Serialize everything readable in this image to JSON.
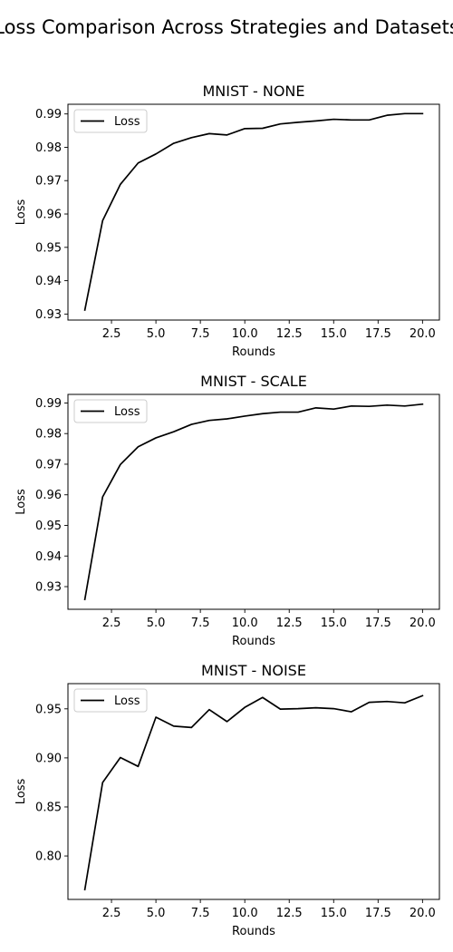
{
  "figure": {
    "suptitle": "Loss Comparison Across Strategies and Datasets"
  },
  "chart_data": [
    {
      "type": "line",
      "title": "MNIST - NONE",
      "xlabel": "Rounds",
      "ylabel": "Loss",
      "xlim": [
        0.05,
        20.95
      ],
      "ylim": [
        0.9282,
        0.9929
      ],
      "xticks": [
        2.5,
        5.0,
        7.5,
        10.0,
        12.5,
        15.0,
        17.5,
        20.0
      ],
      "xtick_labels": [
        "2.5",
        "5.0",
        "7.5",
        "10.0",
        "12.5",
        "15.0",
        "17.5",
        "20.0"
      ],
      "yticks": [
        0.93,
        0.94,
        0.95,
        0.96,
        0.97,
        0.98,
        0.99
      ],
      "ytick_labels": [
        "0.93",
        "0.94",
        "0.95",
        "0.96",
        "0.97",
        "0.98",
        "0.99"
      ],
      "legend_position": "upper-left",
      "series": [
        {
          "name": "Loss",
          "color": "#000000",
          "x": [
            1,
            2,
            3,
            4,
            5,
            6,
            7,
            8,
            9,
            10,
            11,
            12,
            13,
            14,
            15,
            16,
            17,
            18,
            19,
            20
          ],
          "y": [
            0.9312,
            0.958,
            0.9689,
            0.9753,
            0.978,
            0.9812,
            0.9829,
            0.9841,
            0.9837,
            0.9856,
            0.9857,
            0.987,
            0.9875,
            0.9879,
            0.9884,
            0.9882,
            0.9882,
            0.9896,
            0.9901,
            0.9901
          ]
        }
      ]
    },
    {
      "type": "line",
      "title": "MNIST - SCALE",
      "xlabel": "Rounds",
      "ylabel": "Loss",
      "xlim": [
        0.05,
        20.95
      ],
      "ylim": [
        0.9226,
        0.9928
      ],
      "xticks": [
        2.5,
        5.0,
        7.5,
        10.0,
        12.5,
        15.0,
        17.5,
        20.0
      ],
      "xtick_labels": [
        "2.5",
        "5.0",
        "7.5",
        "10.0",
        "12.5",
        "15.0",
        "17.5",
        "20.0"
      ],
      "yticks": [
        0.93,
        0.94,
        0.95,
        0.96,
        0.97,
        0.98,
        0.99
      ],
      "ytick_labels": [
        "0.93",
        "0.94",
        "0.95",
        "0.96",
        "0.97",
        "0.98",
        "0.99"
      ],
      "legend_position": "upper-left",
      "series": [
        {
          "name": "Loss",
          "color": "#000000",
          "x": [
            1,
            2,
            3,
            4,
            5,
            6,
            7,
            8,
            9,
            10,
            11,
            12,
            13,
            14,
            15,
            16,
            17,
            18,
            19,
            20
          ],
          "y": [
            0.9258,
            0.9593,
            0.9699,
            0.9757,
            0.9786,
            0.9806,
            0.983,
            0.9843,
            0.9848,
            0.9857,
            0.9865,
            0.987,
            0.987,
            0.9884,
            0.988,
            0.989,
            0.9889,
            0.9893,
            0.989,
            0.9896
          ]
        }
      ]
    },
    {
      "type": "line",
      "title": "MNIST - NOISE",
      "xlabel": "Rounds",
      "ylabel": "Loss",
      "xlim": [
        0.05,
        20.95
      ],
      "ylim": [
        0.7557,
        0.9757
      ],
      "xticks": [
        2.5,
        5.0,
        7.5,
        10.0,
        12.5,
        15.0,
        17.5,
        20.0
      ],
      "xtick_labels": [
        "2.5",
        "5.0",
        "7.5",
        "10.0",
        "12.5",
        "15.0",
        "17.5",
        "20.0"
      ],
      "yticks": [
        0.8,
        0.85,
        0.9,
        0.95
      ],
      "ytick_labels": [
        "0.80",
        "0.85",
        "0.90",
        "0.95"
      ],
      "legend_position": "upper-left",
      "series": [
        {
          "name": "Loss",
          "color": "#000000",
          "x": [
            1,
            2,
            3,
            4,
            5,
            6,
            7,
            8,
            9,
            10,
            11,
            12,
            13,
            14,
            15,
            16,
            17,
            18,
            19,
            20
          ],
          "y": [
            0.7657,
            0.8748,
            0.9004,
            0.8913,
            0.9415,
            0.9324,
            0.931,
            0.9492,
            0.937,
            0.9515,
            0.9616,
            0.9497,
            0.9502,
            0.9511,
            0.9502,
            0.947,
            0.9566,
            0.9575,
            0.9561,
            0.9634
          ]
        }
      ]
    }
  ]
}
